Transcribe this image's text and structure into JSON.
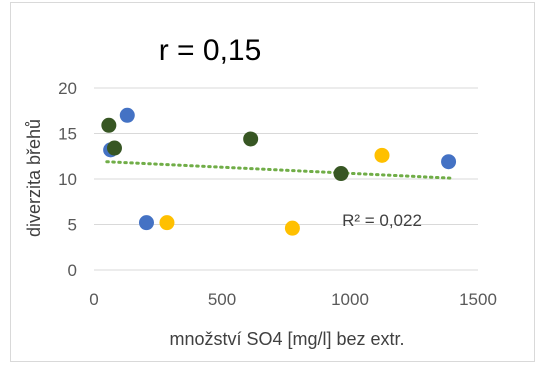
{
  "chart_data": {
    "type": "scatter",
    "title": "r = 0,15",
    "xlabel": "množství SO4 [mg/l] bez extr.",
    "ylabel": "diverzita břehů",
    "xlim": [
      0,
      1500
    ],
    "ylim": [
      0,
      20
    ],
    "xticks": [
      "0",
      "500",
      "1000",
      "1500"
    ],
    "yticks": [
      "0",
      "5",
      "10",
      "15",
      "20"
    ],
    "grid": "horizontal",
    "legend": "none",
    "r2_label": "R² = 0,022",
    "trendline": {
      "type": "linear",
      "x_start": 50,
      "y_start": 11.9,
      "x_end": 1390,
      "y_end": 10.1,
      "color": "#70ad47"
    },
    "series": [
      {
        "color": "#4472c4",
        "points": [
          {
            "x": 65,
            "y": 13.2
          },
          {
            "x": 130,
            "y": 17.0
          },
          {
            "x": 205,
            "y": 5.2
          },
          {
            "x": 1385,
            "y": 11.9
          }
        ]
      },
      {
        "color": "#ffc000",
        "points": [
          {
            "x": 285,
            "y": 5.2
          },
          {
            "x": 775,
            "y": 4.6
          },
          {
            "x": 1125,
            "y": 12.6
          }
        ]
      },
      {
        "color": "#375623",
        "points": [
          {
            "x": 58,
            "y": 15.9
          },
          {
            "x": 80,
            "y": 13.4
          },
          {
            "x": 612,
            "y": 14.4
          },
          {
            "x": 965,
            "y": 10.6
          }
        ]
      }
    ]
  }
}
